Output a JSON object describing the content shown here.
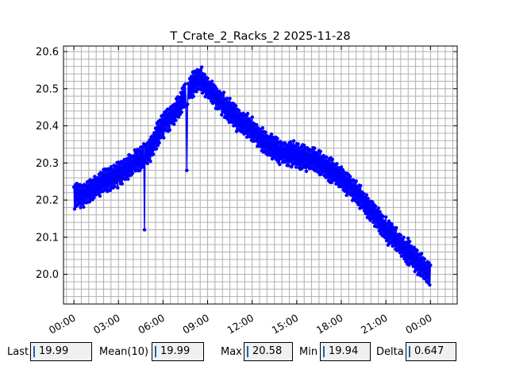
{
  "chart_data": {
    "type": "line",
    "title": "T_Crate_2_Racks_2 2025-11-28",
    "xlabel": "",
    "ylabel": "",
    "x_unit": "hours",
    "xlim": [
      -0.7,
      25.8
    ],
    "ylim": [
      19.92,
      20.615
    ],
    "x_tick_labels": [
      "00:00",
      "03:00",
      "06:00",
      "09:00",
      "12:00",
      "15:00",
      "18:00",
      "21:00",
      "00:00"
    ],
    "x_tick_values": [
      0,
      3,
      6,
      9,
      12,
      15,
      18,
      21,
      24
    ],
    "y_tick_labels": [
      "20.0",
      "20.1",
      "20.2",
      "20.3",
      "20.4",
      "20.5",
      "20.6"
    ],
    "y_tick_values": [
      20.0,
      20.1,
      20.2,
      20.3,
      20.4,
      20.5,
      20.6
    ],
    "grid": true,
    "legend": "none",
    "series": [
      {
        "color": "#0000ff",
        "marker": "circle",
        "trend": [
          [
            0.0,
            20.21
          ],
          [
            1.0,
            20.22
          ],
          [
            2.0,
            20.25
          ],
          [
            3.0,
            20.27
          ],
          [
            4.0,
            20.3
          ],
          [
            5.0,
            20.33
          ],
          [
            6.0,
            20.4
          ],
          [
            7.0,
            20.45
          ],
          [
            8.0,
            20.51
          ],
          [
            8.5,
            20.53
          ],
          [
            9.0,
            20.5
          ],
          [
            10.0,
            20.46
          ],
          [
            11.0,
            20.42
          ],
          [
            12.0,
            20.39
          ],
          [
            13.0,
            20.35
          ],
          [
            14.0,
            20.33
          ],
          [
            15.0,
            20.32
          ],
          [
            16.0,
            20.31
          ],
          [
            17.0,
            20.29
          ],
          [
            18.0,
            20.26
          ],
          [
            19.0,
            20.22
          ],
          [
            20.0,
            20.17
          ],
          [
            21.0,
            20.12
          ],
          [
            22.0,
            20.08
          ],
          [
            23.0,
            20.04
          ],
          [
            24.0,
            20.0
          ]
        ],
        "dips": [
          [
            4.75,
            20.12
          ],
          [
            7.6,
            20.28
          ]
        ]
      }
    ]
  },
  "stats": [
    {
      "label": "Last",
      "value": "19.99"
    },
    {
      "label": "Mean(10)",
      "value": "19.99"
    },
    {
      "label": "Max",
      "value": "20.58"
    },
    {
      "label": "Min",
      "value": "19.94"
    },
    {
      "label": "Delta",
      "value": "0.647"
    }
  ]
}
